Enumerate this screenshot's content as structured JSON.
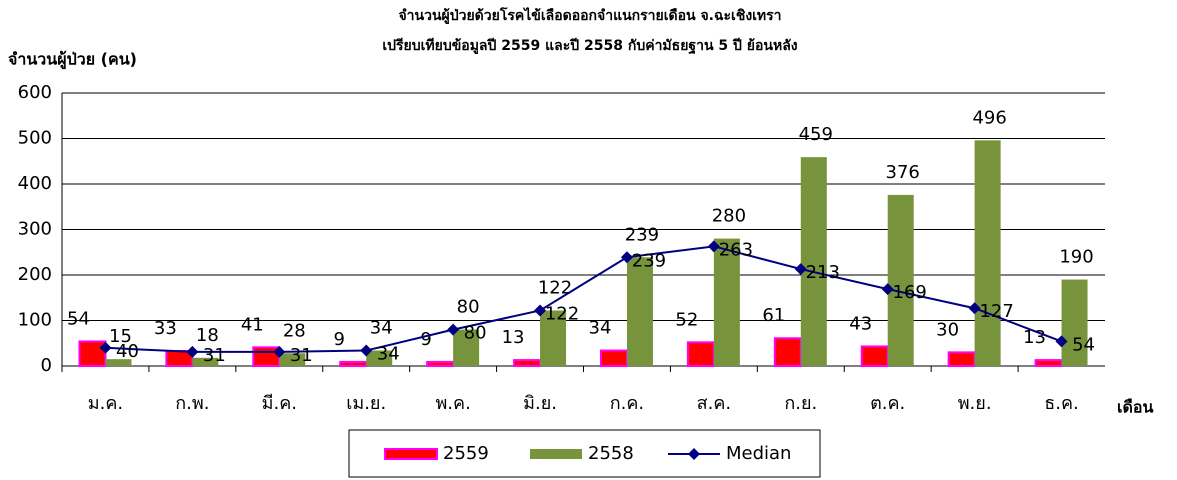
{
  "chart_data": {
    "type": "bar_line",
    "title": "จำนวนผู้ป่วยด้วยโรคไข้เลือดออกจำแนกรายเดือน จ.ฉะเชิงเทรา",
    "subtitle": "เปรียบเทียบข้อมูลปี  2559 และปี 2558 กับค่ามัธยฐาน 5 ปี ย้อนหลัง",
    "y_label": "จำนวนผู้ป่วย (คน)",
    "x_label": "เดือน",
    "categories": [
      "ม.ค.",
      "ก.พ.",
      "มี.ค.",
      "เม.ย.",
      "พ.ค.",
      "มิ.ย.",
      "ก.ค.",
      "ส.ค.",
      "ก.ย.",
      "ต.ค.",
      "พ.ย.",
      "ธ.ค."
    ],
    "series": [
      {
        "name": "2559",
        "type": "bar",
        "color": "#ff0000",
        "stroke": "#ff00ff",
        "values": [
          54,
          33,
          41,
          9,
          9,
          13,
          34,
          52,
          61,
          43,
          30,
          13
        ]
      },
      {
        "name": "2558",
        "type": "bar",
        "color": "#77933c",
        "values": [
          15,
          18,
          28,
          34,
          80,
          122,
          239,
          280,
          459,
          376,
          496,
          190
        ]
      },
      {
        "name": "Median",
        "type": "line",
        "color": "#000080",
        "values": [
          40,
          31,
          31,
          34,
          80,
          122,
          239,
          263,
          213,
          169,
          127,
          54
        ]
      }
    ],
    "ylim": [
      0,
      600
    ],
    "yticks": [
      0,
      100,
      200,
      300,
      400,
      500,
      600
    ],
    "grid": true,
    "legend": "bottom"
  }
}
